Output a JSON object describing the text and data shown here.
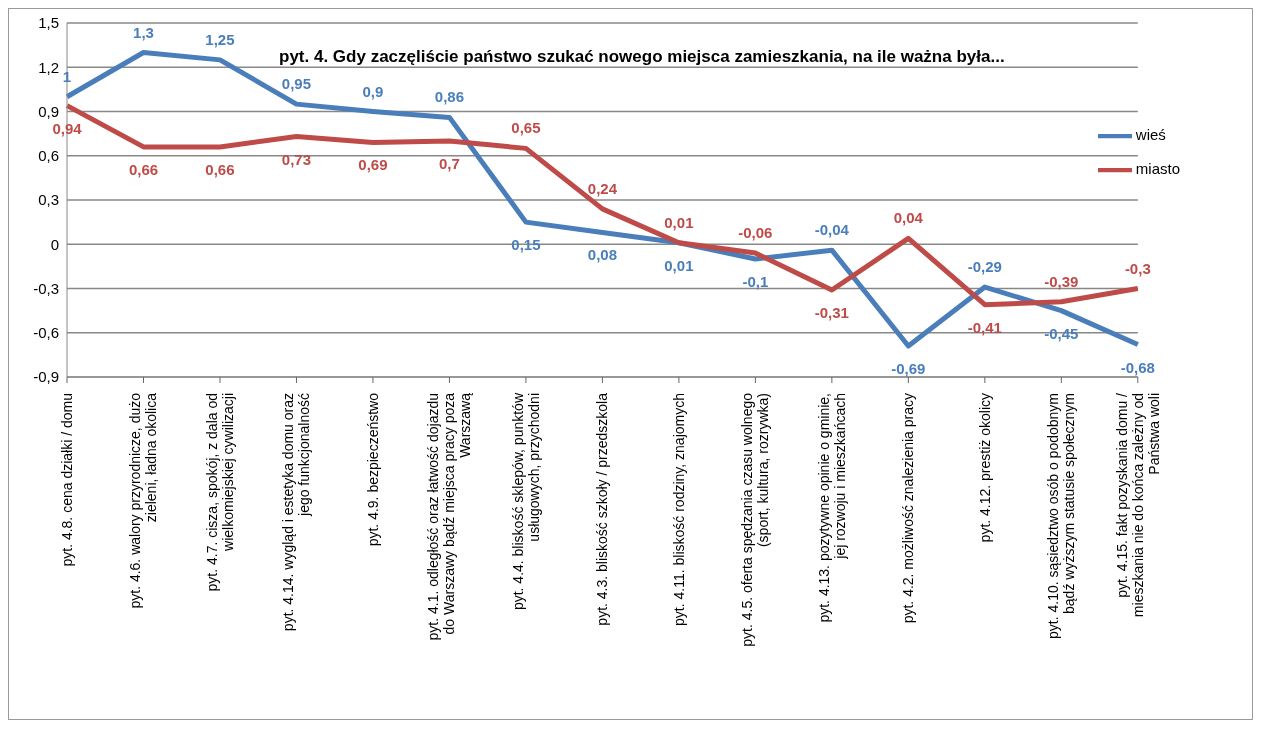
{
  "chart_data": {
    "type": "line",
    "title": "pyt. 4. Gdy zaczęliście państwo szukać nowego miejsca zamieszkania, na ile ważna była...",
    "categories": [
      "pyt. 4.8. cena działki / domu",
      "pyt. 4.6. walory przyrodnicze, dużo zieleni, ładna okolica",
      "pyt. 4.7. cisza, spokój, z dala od wielkomiejskiej cywilizacji",
      "pyt. 4.14. wygląd i estetyka domu oraz jego funkcjonalność",
      "pyt. 4.9. bezpieczeństwo",
      "pyt. 4.1. odległość oraz łatwość dojazdu do Warszawy bądź miejsca pracy poza Warszawą",
      "pyt. 4.4. bliskość sklepów, punktów usługowych, przychodni",
      "pyt. 4.3. bliskość szkoły / przedszkola",
      "pyt. 4.11. bliskość rodziny,  znajomych",
      "pyt. 4.5. oferta spędzania czasu wolnego (sport, kultura, rozrywka)",
      "pyt. 4.13. pozytywne opinie o gminie, jej rozwoju i mieszkańcach",
      "pyt. 4.2. możliwość znalezienia pracy",
      "pyt. 4.12. prestiż okolicy",
      "pyt. 4.10. sąsiedztwo osób o podobnym bądź wyższym statusie społecznym",
      "pyt. 4.15. fakt pozyskania domu / mieszkania nie do końca zależny od Państwa woli"
    ],
    "series": [
      {
        "name": "wieś",
        "color": "#4a7ebb",
        "values": [
          1,
          1.3,
          1.25,
          0.95,
          0.9,
          0.86,
          0.15,
          0.08,
          0.01,
          -0.1,
          -0.04,
          -0.69,
          -0.29,
          -0.45,
          -0.68
        ],
        "value_labels": [
          "1",
          "1,3",
          "1,25",
          "0,95",
          "0,9",
          "0,86",
          "0,15",
          "0,08",
          "0,01",
          "-0,1",
          "-0,04",
          "-0,69",
          "-0,29",
          "-0,45",
          "-0,68"
        ]
      },
      {
        "name": "miasto",
        "color": "#be4b48",
        "values": [
          0.94,
          0.66,
          0.66,
          0.73,
          0.69,
          0.7,
          0.65,
          0.24,
          0.01,
          -0.06,
          -0.31,
          0.04,
          -0.41,
          -0.39,
          -0.3
        ],
        "value_labels": [
          "0,94",
          "0,66",
          "0,66",
          "0,73",
          "0,69",
          "0,7",
          "0,65",
          "0,24",
          "0,01",
          "-0,06",
          "-0,31",
          "0,04",
          "-0,41",
          "-0,39",
          "-0,3"
        ]
      }
    ],
    "ylim": [
      -0.9,
      1.5
    ],
    "yticks": [
      {
        "value": -0.9,
        "label": "-0,9"
      },
      {
        "value": -0.6,
        "label": "-0,6"
      },
      {
        "value": -0.3,
        "label": "-0,3"
      },
      {
        "value": 0,
        "label": "0"
      },
      {
        "value": 0.3,
        "label": "0,3"
      },
      {
        "value": 0.6,
        "label": "0,6"
      },
      {
        "value": 0.9,
        "label": "0,9"
      },
      {
        "value": 1.2,
        "label": "1,2"
      },
      {
        "value": 1.5,
        "label": "1,5"
      }
    ],
    "grid": "y",
    "legend": "right",
    "marker": "none",
    "line_style": "solid"
  }
}
